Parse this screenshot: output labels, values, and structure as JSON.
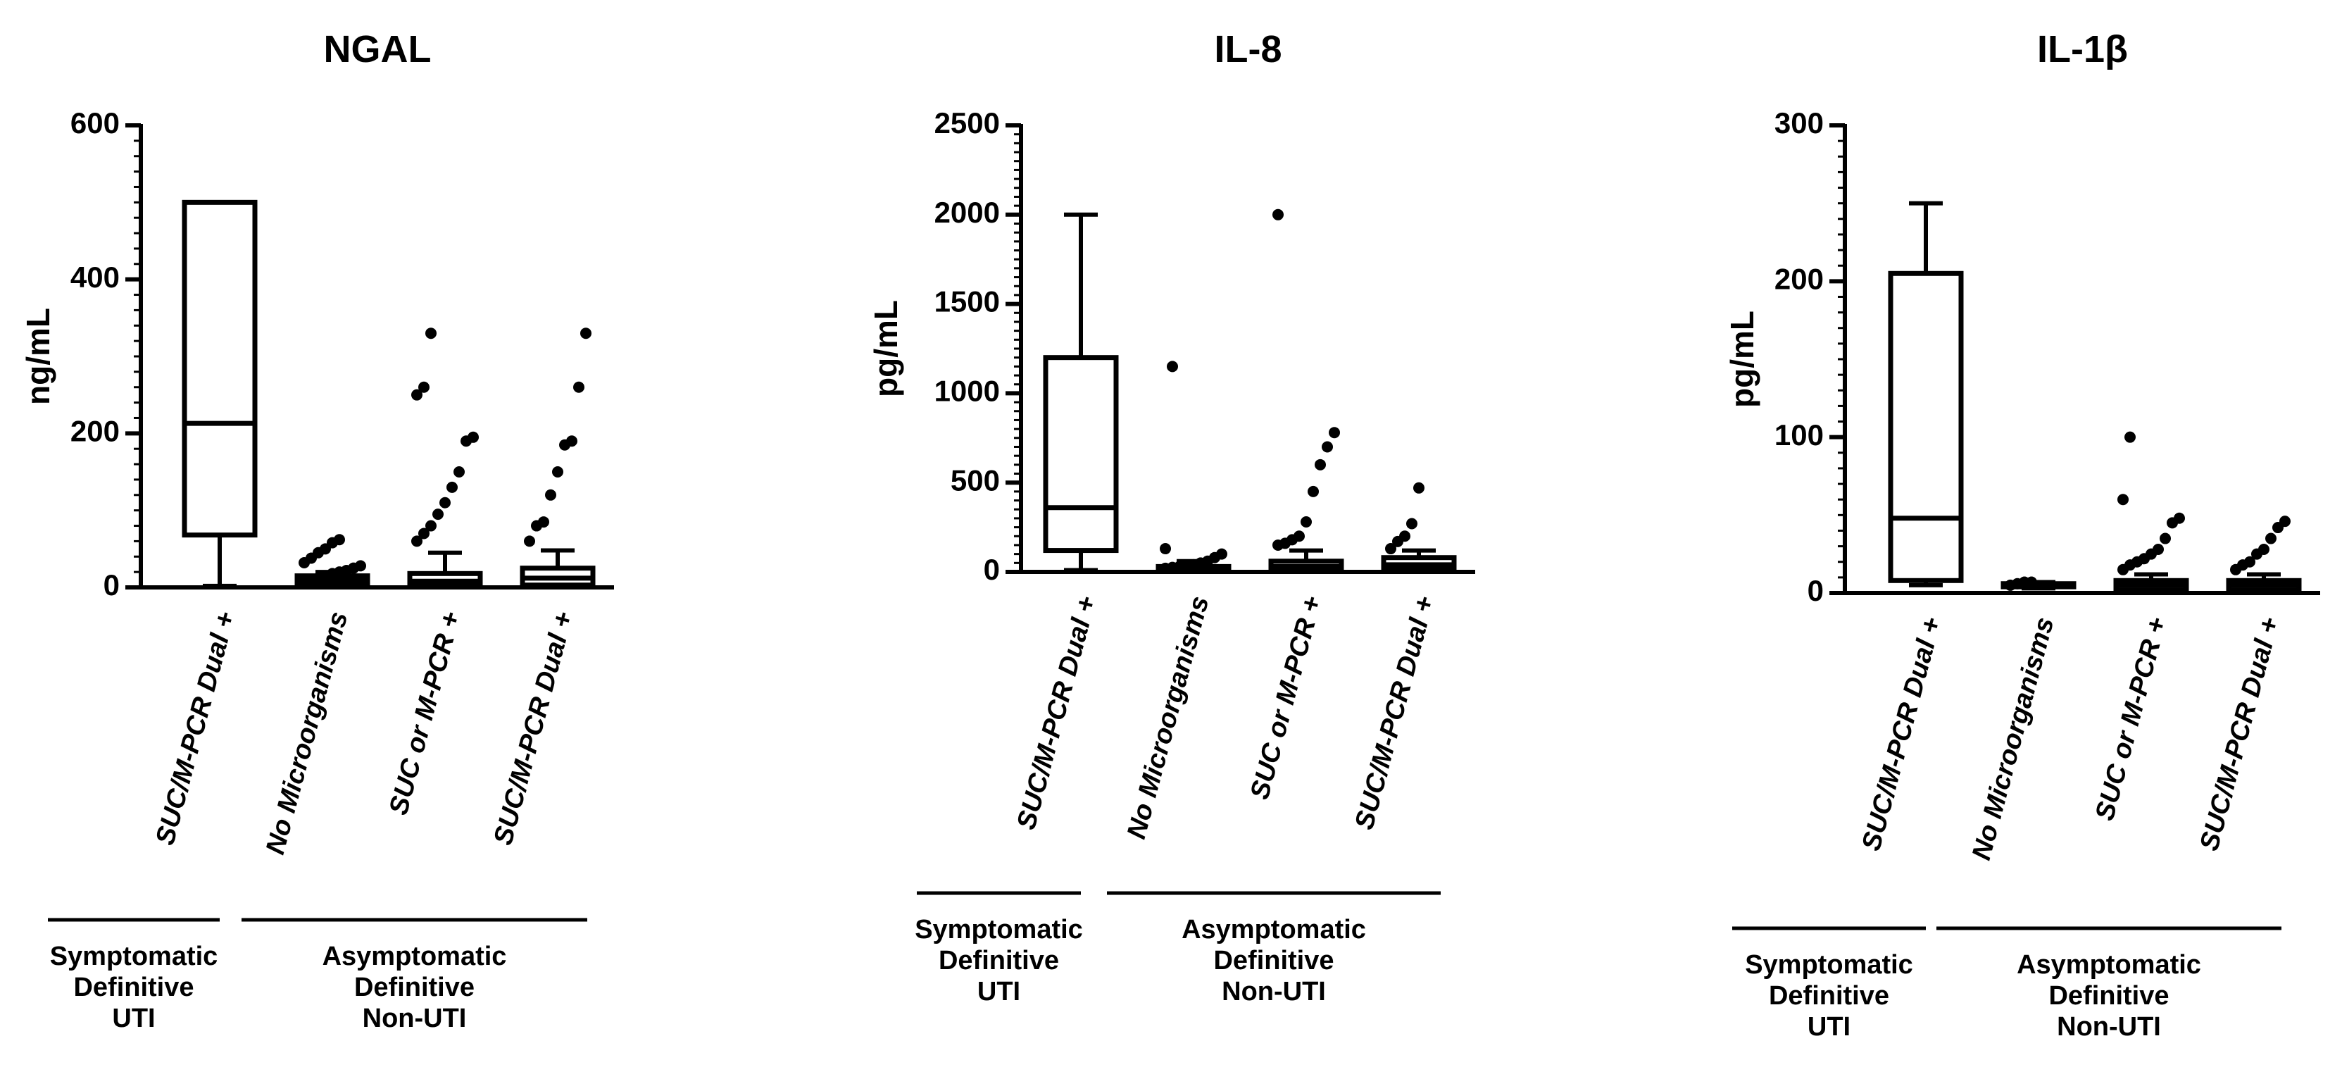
{
  "chart_data": [
    {
      "type": "box",
      "title": "NGAL",
      "ylabel": "ng/mL",
      "ylim": [
        0,
        600
      ],
      "yticks": [
        0,
        200,
        400,
        600
      ],
      "categories": [
        "SUC/M-PCR Dual +",
        "No Microorganisms",
        "SUC or M-PCR +",
        "SUC/M-PCR Dual +"
      ],
      "groups": [
        {
          "lines": [
            "Symptomatic",
            "Definitive",
            "UTI"
          ],
          "categories": [
            0
          ]
        },
        {
          "lines": [
            "Asymptomatic",
            "Definitive",
            "Non-UTI"
          ],
          "categories": [
            1,
            2,
            3
          ]
        }
      ],
      "boxes": [
        {
          "min": 2,
          "q1": 68,
          "median": 213,
          "q3": 500,
          "max": 500,
          "outliers": []
        },
        {
          "min": 2,
          "q1": 5,
          "median": 10,
          "q3": 15,
          "max": 20,
          "outliers": [
            8,
            10,
            12,
            15,
            18,
            20,
            22,
            25,
            28,
            32,
            38,
            45,
            50,
            58,
            62
          ]
        },
        {
          "min": 0,
          "q1": 2,
          "median": 8,
          "q3": 18,
          "max": 45,
          "outliers": [
            60,
            70,
            80,
            95,
            110,
            130,
            150,
            190,
            195,
            250,
            260,
            330
          ]
        },
        {
          "min": 0,
          "q1": 3,
          "median": 12,
          "q3": 25,
          "max": 48,
          "outliers": [
            60,
            80,
            85,
            120,
            150,
            185,
            190,
            260,
            330
          ]
        }
      ]
    },
    {
      "type": "box",
      "title": "IL-8",
      "ylabel": "pg/mL",
      "ylim": [
        0,
        2500
      ],
      "yticks": [
        0,
        500,
        1000,
        1500,
        2000,
        2500
      ],
      "categories": [
        "SUC/M-PCR Dual +",
        "No Microorganisms",
        "SUC or M-PCR +",
        "SUC/M-PCR Dual +"
      ],
      "groups": [
        {
          "lines": [
            "Symptomatic",
            "Definitive",
            "UTI"
          ],
          "categories": [
            0
          ]
        },
        {
          "lines": [
            "Asymptomatic",
            "Definitive",
            "Non-UTI"
          ],
          "categories": [
            1,
            2,
            3
          ]
        }
      ],
      "boxes": [
        {
          "min": 10,
          "q1": 120,
          "median": 360,
          "q3": 1200,
          "max": 2000,
          "outliers": []
        },
        {
          "min": 0,
          "q1": 5,
          "median": 15,
          "q3": 30,
          "max": 60,
          "outliers": [
            20,
            25,
            30,
            35,
            40,
            50,
            60,
            80,
            100,
            130,
            1150
          ]
        },
        {
          "min": 0,
          "q1": 10,
          "median": 30,
          "q3": 60,
          "max": 120,
          "outliers": [
            150,
            160,
            180,
            200,
            280,
            450,
            600,
            700,
            780,
            2000
          ]
        },
        {
          "min": 0,
          "q1": 15,
          "median": 40,
          "q3": 80,
          "max": 120,
          "outliers": [
            130,
            170,
            200,
            270,
            470
          ]
        }
      ]
    },
    {
      "type": "box",
      "title": "IL-1β",
      "ylabel": "pg/mL",
      "ylim": [
        0,
        300
      ],
      "yticks": [
        0,
        100,
        200,
        300
      ],
      "categories": [
        "SUC/M-PCR Dual +",
        "No Microorganisms",
        "SUC or M-PCR +",
        "SUC/M-PCR Dual +"
      ],
      "groups": [
        {
          "lines": [
            "Symptomatic",
            "Definitive",
            "UTI"
          ],
          "categories": [
            0
          ]
        },
        {
          "lines": [
            "Asymptomatic",
            "Definitive",
            "Non-UTI"
          ],
          "categories": [
            1,
            2,
            3
          ]
        }
      ],
      "boxes": [
        {
          "min": 5,
          "q1": 8,
          "median": 48,
          "q3": 205,
          "max": 250,
          "outliers": []
        },
        {
          "min": 3,
          "q1": 4,
          "median": 5,
          "q3": 6,
          "max": 7,
          "outliers": [
            5,
            6,
            7,
            7
          ]
        },
        {
          "min": 0,
          "q1": 2,
          "median": 5,
          "q3": 8,
          "max": 12,
          "outliers": [
            15,
            18,
            20,
            22,
            25,
            28,
            35,
            45,
            48,
            60,
            100
          ]
        },
        {
          "min": 0,
          "q1": 2,
          "median": 5,
          "q3": 8,
          "max": 12,
          "outliers": [
            15,
            18,
            20,
            25,
            28,
            35,
            42,
            46
          ]
        }
      ]
    }
  ]
}
